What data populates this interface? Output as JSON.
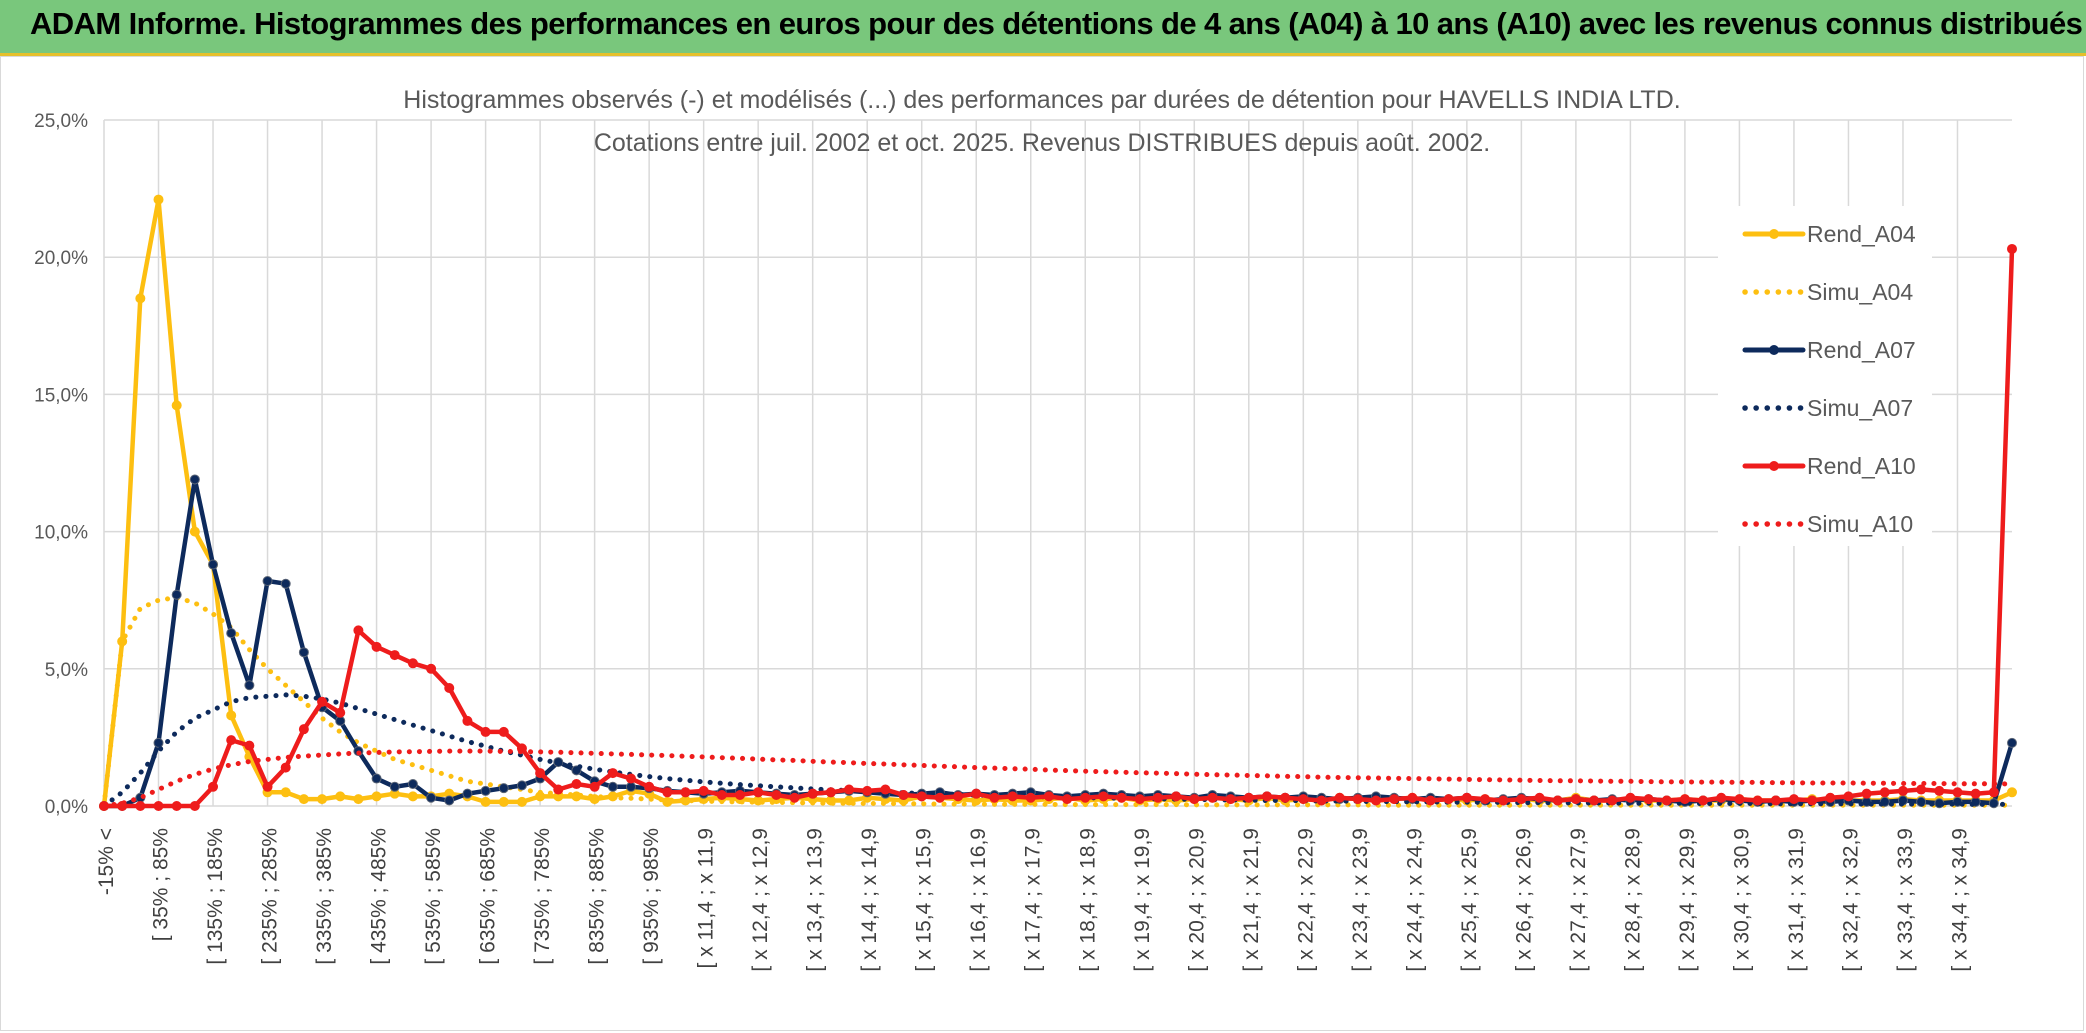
{
  "banner": {
    "title": "ADAM Informe. Histogrammes des performances en euros pour des détentions de 4 ans (A04) à 10 ans (A10) avec les revenus connus distribués"
  },
  "chart_data": {
    "type": "line",
    "title": "Histogrammes observés (-) et modélisés (...) des performances par durées de détention pour HAVELLS INDIA LTD.",
    "subtitle": "Cotations entre juil. 2002 et oct. 2025. Revenus DISTRIBUES depuis août. 2002.",
    "xlabel": "",
    "ylabel": "",
    "ylim": [
      0,
      25
    ],
    "yticks": [
      "0,0%",
      "5,0%",
      "10,0%",
      "15,0%",
      "20,0%",
      "25,0%"
    ],
    "x_tick_labels": [
      "-15% <",
      "[ 35% ; 85%",
      "[ 135% ; 185%",
      "[ 235% ; 285%",
      "[ 335% ; 385%",
      "[ 435% ; 485%",
      "[ 535% ; 585%",
      "[ 635% ; 685%",
      "[ 735% ; 785%",
      "[ 835% ; 885%",
      "[ 935% ; 985%",
      "[ x 11,4 ; x 11,9",
      "[ x 12,4 ; x 12,9",
      "[ x 13,4 ; x 13,9",
      "[ x 14,4 ; x 14,9",
      "[ x 15,4 ; x 15,9",
      "[ x 16,4 ; x 16,9",
      "[ x 17,4 ; x 17,9",
      "[ x 18,4 ; x 18,9",
      "[ x 19,4 ; x 19,9",
      "[ x 20,4 ; x 20,9",
      "[ x 21,4 ; x 21,9",
      "[ x 22,4 ; x 22,9",
      "[ x 23,4 ; x 23,9",
      "[ x 24,4 ; x 24,9",
      "[ x 25,4 ; x 25,9",
      "[ x 26,4 ; x 26,9",
      "[ x 27,4 ; x 27,9",
      "[ x 28,4 ; x 28,9",
      "[ x 29,4 ; x 29,9",
      "[ x 30,4 ; x 30,9",
      "[ x 31,4 ; x 31,9",
      "[ x 32,4 ; x 32,9",
      "[ x 33,4 ; x 33,9",
      "[ x 34,4 ; x 34,9"
    ],
    "legend_position": "right",
    "series": [
      {
        "name": "Rend_A04",
        "style": "solid",
        "color": "#fdbf11",
        "values": [
          0,
          6,
          18.5,
          22.1,
          14.6,
          10,
          8.8,
          3.3,
          1.8,
          0.5,
          0.5,
          0.25,
          0.25,
          0.35,
          0.25,
          0.35,
          0.45,
          0.35,
          0.35,
          0.45,
          0.35,
          0.15,
          0.15,
          0.15,
          0.35,
          0.35,
          0.35,
          0.25,
          0.35,
          0.55,
          0.45,
          0.15,
          0.2,
          0.25,
          0.3,
          0.25,
          0.2,
          0.25,
          0.3,
          0.25,
          0.2,
          0.2,
          0.3,
          0.25,
          0.2,
          0.35,
          0.3,
          0.25,
          0.2,
          0.25,
          0.2,
          0.2,
          0.25,
          0.3,
          0.2,
          0.25,
          0.3,
          0.2,
          0.25,
          0.2,
          0.25,
          0.3,
          0.25,
          0.2,
          0.3,
          0.2,
          0.25,
          0.2,
          0.3,
          0.25,
          0.2,
          0.25,
          0.3,
          0.2,
          0.25,
          0.2,
          0.25,
          0.2,
          0.25,
          0.2,
          0.2,
          0.3,
          0.2,
          0.2,
          0.25,
          0.2,
          0.2,
          0.25,
          0.2,
          0.2,
          0.25,
          0.2,
          0.2,
          0.2,
          0.25,
          0.2,
          0.2,
          0.2,
          0.2,
          0.25,
          0.2,
          0.2,
          0.2,
          0.2,
          0.2,
          0.5
        ]
      },
      {
        "name": "Simu_A04",
        "style": "dotted",
        "color": "#fdbf11",
        "values": [
          0,
          6,
          7.2,
          7.5,
          7.6,
          7.4,
          7,
          6.5,
          5.7,
          5.0,
          4.4,
          3.8,
          3.2,
          2.7,
          2.3,
          2.0,
          1.7,
          1.5,
          1.3,
          1.1,
          0.9,
          0.8,
          0.7,
          0.6,
          0.5,
          0.45,
          0.4,
          0.35,
          0.3,
          0.28,
          0.25,
          0.22,
          0.2,
          0.18,
          0.16,
          0.15,
          0.14,
          0.13,
          0.12,
          0.11,
          0.1,
          0.1,
          0.09,
          0.09,
          0.08,
          0.08,
          0.07,
          0.07,
          0.07,
          0.06,
          0.06,
          0.06,
          0.06,
          0.05,
          0.05,
          0.05,
          0.05,
          0.05,
          0.05,
          0.05,
          0.04,
          0.04,
          0.04,
          0.04,
          0.04,
          0.04,
          0.04,
          0.04,
          0.04,
          0.04,
          0.03,
          0.03,
          0.03,
          0.03,
          0.03,
          0.03,
          0.03,
          0.03,
          0.03,
          0.03,
          0.03,
          0.03,
          0.03,
          0.03,
          0.03,
          0.03,
          0.03,
          0.03,
          0.03,
          0.03,
          0.03,
          0.03,
          0.03,
          0.03,
          0.03,
          0.03,
          0.03,
          0.03,
          0.03,
          0.03,
          0.03,
          0.03,
          0.03,
          0.03,
          0.03,
          0.03
        ]
      },
      {
        "name": "Rend_A07",
        "style": "solid",
        "color": "#0d2a5c",
        "values": [
          0,
          0,
          0.3,
          2.3,
          7.7,
          11.9,
          8.8,
          6.3,
          4.4,
          8.2,
          8.1,
          5.6,
          3.6,
          3.1,
          2,
          1,
          0.7,
          0.8,
          0.3,
          0.2,
          0.45,
          0.55,
          0.65,
          0.75,
          1,
          1.6,
          1.3,
          0.9,
          0.7,
          0.7,
          0.65,
          0.55,
          0.5,
          0.45,
          0.5,
          0.55,
          0.5,
          0.45,
          0.4,
          0.45,
          0.5,
          0.55,
          0.5,
          0.45,
          0.4,
          0.45,
          0.5,
          0.4,
          0.45,
          0.4,
          0.45,
          0.5,
          0.4,
          0.35,
          0.4,
          0.45,
          0.4,
          0.35,
          0.4,
          0.35,
          0.3,
          0.4,
          0.35,
          0.3,
          0.35,
          0.3,
          0.35,
          0.3,
          0.25,
          0.3,
          0.35,
          0.3,
          0.25,
          0.3,
          0.25,
          0.3,
          0.2,
          0.25,
          0.3,
          0.25,
          0.2,
          0.25,
          0.2,
          0.25,
          0.2,
          0.25,
          0.2,
          0.15,
          0.2,
          0.25,
          0.2,
          0.15,
          0.2,
          0.15,
          0.2,
          0.15,
          0.2,
          0.15,
          0.15,
          0.2,
          0.15,
          0.1,
          0.15,
          0.15,
          0.1,
          2.3
        ]
      },
      {
        "name": "Simu_A07",
        "style": "dotted",
        "color": "#0d2a5c",
        "values": [
          0,
          0.5,
          1.2,
          2,
          2.7,
          3.2,
          3.5,
          3.8,
          3.95,
          4.0,
          4.05,
          4.0,
          3.9,
          3.75,
          3.55,
          3.35,
          3.15,
          2.95,
          2.75,
          2.55,
          2.35,
          2.18,
          2.0,
          1.85,
          1.7,
          1.57,
          1.45,
          1.34,
          1.24,
          1.15,
          1.07,
          1.0,
          0.94,
          0.88,
          0.83,
          0.78,
          0.74,
          0.7,
          0.66,
          0.62,
          0.59,
          0.56,
          0.53,
          0.5,
          0.48,
          0.46,
          0.44,
          0.42,
          0.4,
          0.38,
          0.36,
          0.35,
          0.33,
          0.32,
          0.3,
          0.29,
          0.28,
          0.27,
          0.26,
          0.25,
          0.24,
          0.23,
          0.22,
          0.21,
          0.2,
          0.2,
          0.19,
          0.18,
          0.18,
          0.17,
          0.16,
          0.16,
          0.15,
          0.15,
          0.14,
          0.14,
          0.13,
          0.13,
          0.12,
          0.12,
          0.12,
          0.11,
          0.11,
          0.11,
          0.1,
          0.1,
          0.1,
          0.1,
          0.09,
          0.09,
          0.09,
          0.09,
          0.08,
          0.08,
          0.08,
          0.08,
          0.08,
          0.07,
          0.07,
          0.07,
          0.07,
          0.07,
          0.07,
          0.06,
          0.06,
          0.06
        ]
      },
      {
        "name": "Rend_A10",
        "style": "solid",
        "color": "#ee1c1c",
        "values": [
          0,
          0,
          0,
          0,
          0,
          0,
          0.7,
          2.4,
          2.2,
          0.7,
          1.4,
          2.8,
          3.8,
          3.4,
          6.4,
          5.8,
          5.5,
          5.2,
          5,
          4.3,
          3.1,
          2.7,
          2.7,
          2.1,
          1.2,
          0.6,
          0.8,
          0.7,
          1.2,
          1,
          0.7,
          0.5,
          0.5,
          0.55,
          0.4,
          0.4,
          0.5,
          0.4,
          0.3,
          0.45,
          0.5,
          0.6,
          0.55,
          0.6,
          0.4,
          0.35,
          0.3,
          0.35,
          0.45,
          0.3,
          0.35,
          0.3,
          0.35,
          0.25,
          0.3,
          0.35,
          0.3,
          0.25,
          0.3,
          0.35,
          0.25,
          0.3,
          0.25,
          0.3,
          0.35,
          0.3,
          0.25,
          0.2,
          0.3,
          0.25,
          0.2,
          0.25,
          0.3,
          0.2,
          0.25,
          0.3,
          0.25,
          0.2,
          0.25,
          0.3,
          0.2,
          0.25,
          0.2,
          0.2,
          0.3,
          0.25,
          0.2,
          0.25,
          0.2,
          0.3,
          0.25,
          0.2,
          0.2,
          0.25,
          0.2,
          0.3,
          0.35,
          0.45,
          0.5,
          0.55,
          0.6,
          0.55,
          0.5,
          0.45,
          0.5,
          20.3
        ]
      },
      {
        "name": "Simu_A10",
        "style": "dotted",
        "color": "#ee1c1c",
        "values": [
          0,
          0.1,
          0.3,
          0.6,
          0.9,
          1.15,
          1.35,
          1.5,
          1.62,
          1.7,
          1.77,
          1.82,
          1.86,
          1.9,
          1.93,
          1.95,
          1.97,
          1.98,
          1.99,
          2.0,
          2.0,
          2.0,
          1.99,
          1.98,
          1.97,
          1.96,
          1.94,
          1.92,
          1.9,
          1.88,
          1.86,
          1.84,
          1.81,
          1.79,
          1.76,
          1.74,
          1.71,
          1.68,
          1.66,
          1.63,
          1.6,
          1.58,
          1.55,
          1.53,
          1.5,
          1.48,
          1.45,
          1.43,
          1.4,
          1.38,
          1.36,
          1.34,
          1.31,
          1.29,
          1.27,
          1.25,
          1.23,
          1.21,
          1.2,
          1.18,
          1.16,
          1.14,
          1.13,
          1.11,
          1.1,
          1.08,
          1.07,
          1.05,
          1.04,
          1.03,
          1.02,
          1.01,
          1.0,
          0.99,
          0.98,
          0.97,
          0.96,
          0.95,
          0.94,
          0.93,
          0.92,
          0.92,
          0.91,
          0.9,
          0.9,
          0.89,
          0.88,
          0.88,
          0.87,
          0.87,
          0.86,
          0.86,
          0.85,
          0.85,
          0.84,
          0.84,
          0.84,
          0.83,
          0.83,
          0.82,
          0.82,
          0.82,
          0.81,
          0.81,
          0.81,
          0.8
        ]
      }
    ]
  }
}
